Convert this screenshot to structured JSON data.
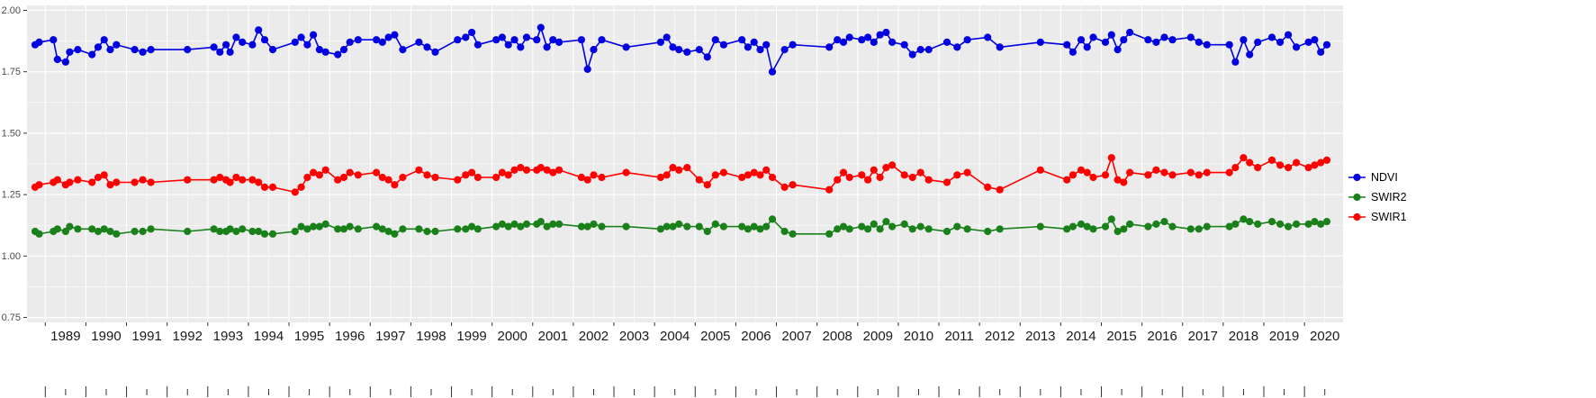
{
  "chart_data": {
    "type": "line",
    "title": "",
    "xlabel": "",
    "ylabel": "",
    "grid": true,
    "legend_position": "right",
    "panel_bg": "#EBEBEB",
    "grid_color": "#FFFFFF",
    "axis_text_color": "#4D4D4D",
    "x_label_color": "#1A1A1A",
    "tick_color": "#333333",
    "x_range": [
      1988.55,
      2020.95
    ],
    "y_range": [
      0.73,
      2.02
    ],
    "y_ticks": [
      2.0,
      1.75,
      1.5,
      1.25,
      1.0,
      0.75
    ],
    "y_tick_labels": [
      "2.00",
      "1.75",
      "1.50",
      "1.25",
      "1.00",
      "0.75"
    ],
    "x_tick_years": [
      1989,
      1990,
      1991,
      1992,
      1993,
      1994,
      1995,
      1996,
      1997,
      1998,
      1999,
      2000,
      2001,
      2002,
      2003,
      2004,
      2005,
      2006,
      2007,
      2008,
      2009,
      2010,
      2011,
      2012,
      2013,
      2014,
      2015,
      2016,
      2017,
      2018,
      2019,
      2020
    ],
    "x_tick_labels": [
      "1989",
      "1990",
      "1991",
      "1992",
      "1993",
      "1994",
      "1995",
      "1996",
      "1997",
      "1998",
      "1999",
      "2000",
      "2001",
      "2002",
      "2003",
      "2004",
      "2005",
      "2006",
      "2007",
      "2008",
      "2009",
      "2010",
      "2011",
      "2012",
      "2013",
      "2014",
      "2015",
      "2016",
      "2017",
      "2018",
      "2019",
      "2020"
    ],
    "x": [
      1988.75,
      1988.85,
      1989.2,
      1989.3,
      1989.5,
      1989.6,
      1989.8,
      1990.15,
      1990.3,
      1990.45,
      1990.6,
      1990.75,
      1991.2,
      1991.4,
      1991.6,
      1992.5,
      1993.15,
      1993.3,
      1993.45,
      1993.55,
      1993.7,
      1993.85,
      1994.1,
      1994.25,
      1994.4,
      1994.6,
      1995.15,
      1995.3,
      1995.45,
      1995.6,
      1995.75,
      1995.9,
      1996.2,
      1996.35,
      1996.5,
      1996.7,
      1997.15,
      1997.3,
      1997.45,
      1997.6,
      1997.8,
      1998.2,
      1998.4,
      1998.6,
      1999.15,
      1999.35,
      1999.5,
      1999.65,
      2000.1,
      2000.25,
      2000.4,
      2000.55,
      2000.7,
      2000.85,
      2001.1,
      2001.2,
      2001.35,
      2001.5,
      2001.65,
      2002.2,
      2002.35,
      2002.5,
      2002.7,
      2003.3,
      2004.15,
      2004.3,
      2004.45,
      2004.6,
      2004.8,
      2005.1,
      2005.3,
      2005.5,
      2005.7,
      2006.15,
      2006.3,
      2006.45,
      2006.6,
      2006.75,
      2006.9,
      2007.2,
      2007.4,
      2008.3,
      2008.5,
      2008.65,
      2008.8,
      2009.1,
      2009.25,
      2009.4,
      2009.55,
      2009.7,
      2009.85,
      2010.15,
      2010.35,
      2010.55,
      2010.75,
      2011.2,
      2011.45,
      2011.7,
      2012.2,
      2012.5,
      2013.5,
      2014.15,
      2014.3,
      2014.5,
      2014.65,
      2014.8,
      2015.1,
      2015.25,
      2015.4,
      2015.55,
      2015.7,
      2016.15,
      2016.35,
      2016.55,
      2016.75,
      2017.2,
      2017.4,
      2017.6,
      2018.15,
      2018.3,
      2018.5,
      2018.65,
      2018.85,
      2019.2,
      2019.4,
      2019.6,
      2019.8,
      2020.1,
      2020.25,
      2020.4,
      2020.55
    ],
    "series": [
      {
        "name": "NDVI",
        "color": "#0000E0",
        "values": [
          1.86,
          1.87,
          1.88,
          1.8,
          1.79,
          1.83,
          1.84,
          1.82,
          1.85,
          1.88,
          1.84,
          1.86,
          1.84,
          1.83,
          1.84,
          1.84,
          1.85,
          1.83,
          1.86,
          1.83,
          1.89,
          1.87,
          1.86,
          1.92,
          1.88,
          1.84,
          1.87,
          1.89,
          1.86,
          1.9,
          1.84,
          1.83,
          1.82,
          1.84,
          1.87,
          1.88,
          1.88,
          1.87,
          1.89,
          1.9,
          1.84,
          1.87,
          1.85,
          1.83,
          1.88,
          1.89,
          1.91,
          1.86,
          1.88,
          1.89,
          1.86,
          1.88,
          1.85,
          1.89,
          1.88,
          1.93,
          1.85,
          1.88,
          1.87,
          1.88,
          1.76,
          1.84,
          1.88,
          1.85,
          1.87,
          1.89,
          1.85,
          1.84,
          1.83,
          1.84,
          1.81,
          1.88,
          1.86,
          1.88,
          1.85,
          1.87,
          1.84,
          1.86,
          1.75,
          1.84,
          1.86,
          1.85,
          1.88,
          1.87,
          1.89,
          1.88,
          1.89,
          1.87,
          1.9,
          1.91,
          1.87,
          1.86,
          1.82,
          1.84,
          1.84,
          1.87,
          1.85,
          1.88,
          1.89,
          1.85,
          1.87,
          1.86,
          1.83,
          1.88,
          1.85,
          1.89,
          1.87,
          1.9,
          1.84,
          1.88,
          1.91,
          1.88,
          1.87,
          1.89,
          1.88,
          1.89,
          1.87,
          1.86,
          1.86,
          1.79,
          1.88,
          1.82,
          1.87,
          1.89,
          1.87,
          1.9,
          1.85,
          1.87,
          1.88,
          1.83,
          1.86
        ]
      },
      {
        "name": "SWIR2",
        "color": "#1A801A",
        "values": [
          1.1,
          1.09,
          1.1,
          1.11,
          1.1,
          1.12,
          1.11,
          1.11,
          1.1,
          1.11,
          1.1,
          1.09,
          1.1,
          1.1,
          1.11,
          1.1,
          1.11,
          1.1,
          1.1,
          1.11,
          1.1,
          1.11,
          1.1,
          1.1,
          1.09,
          1.09,
          1.1,
          1.12,
          1.11,
          1.12,
          1.12,
          1.13,
          1.11,
          1.11,
          1.12,
          1.11,
          1.12,
          1.11,
          1.1,
          1.09,
          1.11,
          1.11,
          1.1,
          1.1,
          1.11,
          1.11,
          1.12,
          1.11,
          1.12,
          1.13,
          1.12,
          1.13,
          1.12,
          1.13,
          1.13,
          1.14,
          1.12,
          1.13,
          1.13,
          1.12,
          1.12,
          1.13,
          1.12,
          1.12,
          1.11,
          1.12,
          1.12,
          1.13,
          1.12,
          1.12,
          1.1,
          1.13,
          1.12,
          1.12,
          1.11,
          1.12,
          1.11,
          1.12,
          1.15,
          1.1,
          1.09,
          1.09,
          1.11,
          1.12,
          1.11,
          1.12,
          1.11,
          1.13,
          1.11,
          1.14,
          1.12,
          1.13,
          1.11,
          1.12,
          1.11,
          1.1,
          1.12,
          1.11,
          1.1,
          1.11,
          1.12,
          1.11,
          1.12,
          1.13,
          1.12,
          1.11,
          1.12,
          1.15,
          1.1,
          1.11,
          1.13,
          1.12,
          1.13,
          1.14,
          1.12,
          1.11,
          1.11,
          1.12,
          1.12,
          1.13,
          1.15,
          1.14,
          1.13,
          1.14,
          1.13,
          1.12,
          1.13,
          1.13,
          1.14,
          1.13,
          1.14
        ]
      },
      {
        "name": "SWIR1",
        "color": "#FF0000",
        "values": [
          1.28,
          1.29,
          1.3,
          1.31,
          1.29,
          1.3,
          1.31,
          1.3,
          1.32,
          1.33,
          1.29,
          1.3,
          1.3,
          1.31,
          1.3,
          1.31,
          1.31,
          1.32,
          1.31,
          1.3,
          1.32,
          1.31,
          1.31,
          1.3,
          1.28,
          1.28,
          1.26,
          1.28,
          1.32,
          1.34,
          1.33,
          1.35,
          1.31,
          1.32,
          1.34,
          1.33,
          1.34,
          1.32,
          1.31,
          1.29,
          1.32,
          1.35,
          1.33,
          1.32,
          1.31,
          1.33,
          1.34,
          1.32,
          1.32,
          1.34,
          1.33,
          1.35,
          1.36,
          1.35,
          1.35,
          1.36,
          1.35,
          1.34,
          1.35,
          1.32,
          1.31,
          1.33,
          1.32,
          1.34,
          1.32,
          1.33,
          1.36,
          1.35,
          1.36,
          1.31,
          1.29,
          1.33,
          1.34,
          1.32,
          1.33,
          1.34,
          1.33,
          1.35,
          1.32,
          1.28,
          1.29,
          1.27,
          1.31,
          1.34,
          1.32,
          1.33,
          1.31,
          1.35,
          1.32,
          1.36,
          1.37,
          1.33,
          1.32,
          1.34,
          1.31,
          1.3,
          1.33,
          1.34,
          1.28,
          1.27,
          1.35,
          1.31,
          1.33,
          1.35,
          1.34,
          1.32,
          1.33,
          1.4,
          1.31,
          1.3,
          1.34,
          1.33,
          1.35,
          1.34,
          1.33,
          1.34,
          1.33,
          1.34,
          1.34,
          1.36,
          1.4,
          1.38,
          1.36,
          1.39,
          1.37,
          1.36,
          1.38,
          1.36,
          1.37,
          1.38,
          1.39
        ]
      }
    ],
    "legend": {
      "entries": [
        {
          "label": "NDVI",
          "color": "#0000E0"
        },
        {
          "label": "SWIR2",
          "color": "#1A801A"
        },
        {
          "label": "SWIR1",
          "color": "#FF0000"
        }
      ]
    }
  }
}
